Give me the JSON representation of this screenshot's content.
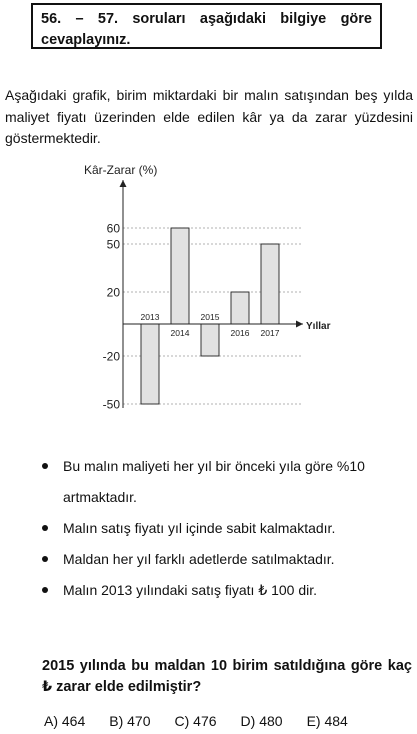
{
  "header": {
    "text": "56. – 57. soruları aşağıdaki bilgiye göre cevaplayınız."
  },
  "intro": {
    "text": "Aşağıdaki grafik, birim miktardaki bir malın satışından beş yılda maliyet fiyatı üzerinden elde edilen kâr ya da zarar yüzdesini göstermektedir."
  },
  "chart_data": {
    "type": "bar",
    "ylabel": "Kâr-Zarar (%)",
    "xlabel": "Yıllar",
    "categories": [
      "2013",
      "2014",
      "2015",
      "2016",
      "2017"
    ],
    "values": [
      -50,
      60,
      -20,
      20,
      50
    ],
    "yticks": [
      "60",
      "50",
      "20",
      "-20",
      "-50"
    ],
    "ytick_values": [
      60,
      50,
      20,
      -20,
      -50
    ],
    "ylim": [
      -50,
      60
    ],
    "bar_color": "#e2e2e2",
    "grid": "dashed guides at tick values"
  },
  "bullets": [
    "Bu malın maliyeti her yıl bir önceki yıla göre %10 artmaktadır.",
    "Malın satış fiyatı yıl içinde sabit kalmaktadır.",
    "Maldan her yıl farklı adetlerde satılmaktadır.",
    "Malın 2013 yılındaki satış fiyatı ₺ 100 dir."
  ],
  "question": {
    "text": "2015 yılında bu maldan 10 birim satıldığına göre kaç ₺ zarar elde edilmiştir?"
  },
  "choices": [
    "A) 464",
    "B) 470",
    "C) 476",
    "D) 480",
    "E) 484"
  ]
}
